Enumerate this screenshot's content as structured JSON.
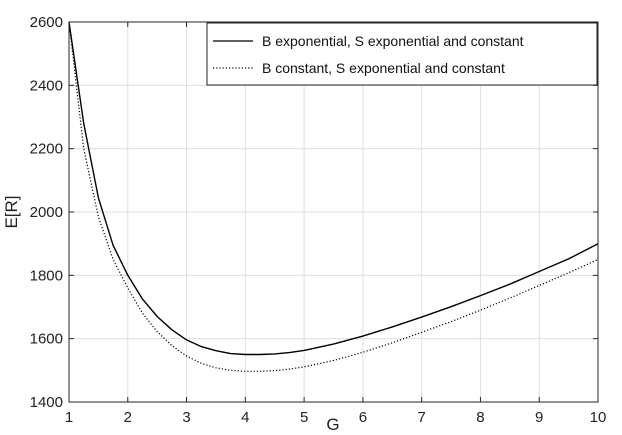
{
  "chart_data": {
    "type": "line",
    "xlabel": "G",
    "ylabel": "E[R]",
    "xlim": [
      1,
      10
    ],
    "ylim": [
      1400,
      2600
    ],
    "xticks": [
      1,
      2,
      3,
      4,
      5,
      6,
      7,
      8,
      9,
      10
    ],
    "yticks": [
      1400,
      1600,
      1800,
      2000,
      2200,
      2400,
      2600
    ],
    "grid": true,
    "legend_position": "top-right",
    "series": [
      {
        "name": "B exponential, S exponential and constant",
        "style": "solid",
        "color": "#000000",
        "x": [
          1,
          1.25,
          1.5,
          1.75,
          2,
          2.25,
          2.5,
          2.75,
          3,
          3.25,
          3.5,
          3.75,
          4,
          4.25,
          4.5,
          4.75,
          5,
          5.5,
          6,
          6.5,
          7,
          7.5,
          8,
          8.5,
          9,
          9.5,
          10
        ],
        "y": [
          2600,
          2280,
          2045,
          1895,
          1800,
          1725,
          1670,
          1628,
          1596,
          1575,
          1562,
          1553,
          1550,
          1550,
          1552,
          1556,
          1563,
          1583,
          1608,
          1637,
          1668,
          1701,
          1736,
          1772,
          1812,
          1852,
          1900
        ]
      },
      {
        "name": "B constant, S exponential and constant",
        "style": "dotted",
        "color": "#000000",
        "x": [
          1,
          1.25,
          1.5,
          1.75,
          2,
          2.25,
          2.5,
          2.75,
          3,
          3.25,
          3.5,
          3.75,
          4,
          4.25,
          4.5,
          4.75,
          5,
          5.5,
          6,
          6.5,
          7,
          7.5,
          8,
          8.5,
          9,
          9.5,
          10
        ],
        "y": [
          2600,
          2200,
          1985,
          1850,
          1760,
          1680,
          1622,
          1578,
          1545,
          1522,
          1508,
          1500,
          1497,
          1497,
          1499,
          1504,
          1511,
          1531,
          1557,
          1587,
          1620,
          1654,
          1690,
          1728,
          1768,
          1808,
          1850
        ]
      }
    ]
  }
}
